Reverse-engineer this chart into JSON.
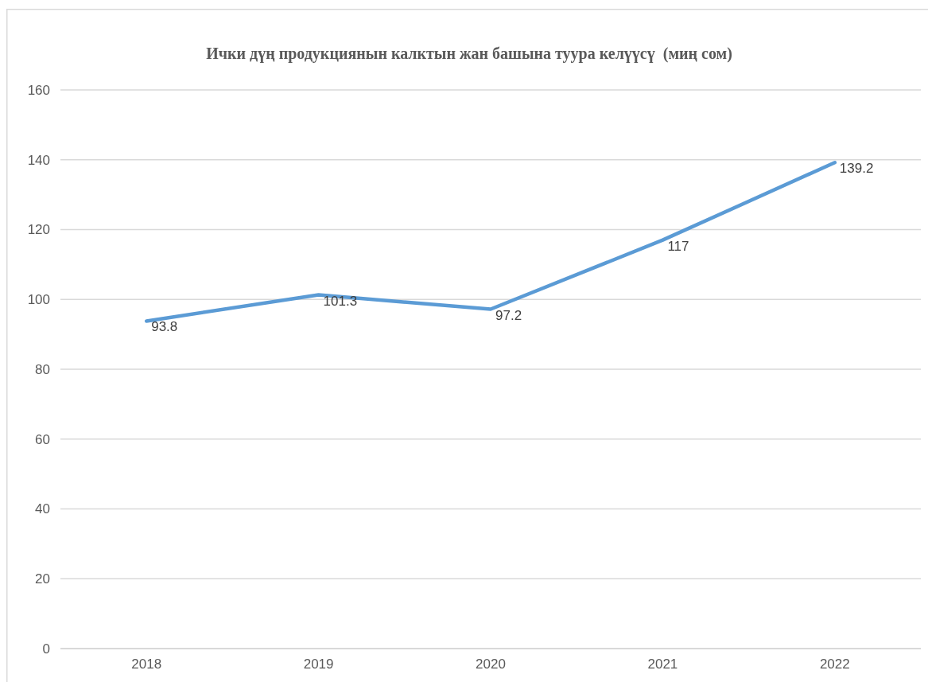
{
  "chart_data": {
    "type": "line",
    "title": "Ички дүң продукциянын калктын жан башына туура келүүсү  (миң сом)",
    "categories": [
      "2018",
      "2019",
      "2020",
      "2021",
      "2022"
    ],
    "series": [
      {
        "color": "#5b9bd5",
        "values": [
          93.8,
          101.3,
          97.2,
          117,
          139.2
        ]
      }
    ],
    "ylim": [
      0,
      160
    ],
    "yticks": [
      0,
      20,
      40,
      60,
      80,
      100,
      120,
      140,
      160
    ],
    "grid": "y",
    "data_labels": true,
    "marker": "none",
    "line_style": "solid"
  }
}
